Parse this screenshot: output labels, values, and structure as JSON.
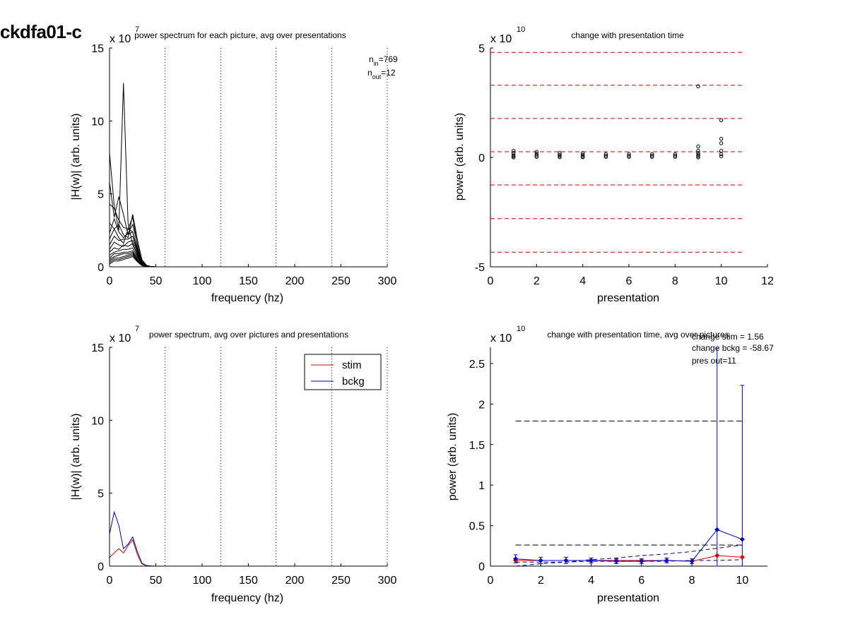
{
  "figure_title": "ckdfa01-c",
  "chart_data": [
    {
      "id": "tl",
      "type": "line",
      "title": "power spectrum for each picture, avg over presentations",
      "xlabel": "frequency (hz)",
      "ylabel": "|H(w)| (arb. units)",
      "multiplier_base": "x 10",
      "multiplier_exp": "7",
      "xlim": [
        0,
        300
      ],
      "ylim": [
        0,
        15
      ],
      "xticks": [
        0,
        50,
        100,
        150,
        200,
        250,
        300
      ],
      "yticks": [
        0,
        5,
        10,
        15
      ],
      "vlines": [
        60,
        120,
        180,
        240,
        300
      ],
      "annotations": [
        {
          "base": "n",
          "sub": "in",
          "value": "=769"
        },
        {
          "base": "n",
          "sub": "out",
          "value": "=12"
        }
      ],
      "x": [
        0,
        5,
        10,
        15,
        20,
        25,
        30,
        35,
        40,
        45,
        50,
        55,
        60,
        300
      ],
      "series": [
        {
          "values": [
            7.8,
            4.2,
            2.5,
            12.6,
            3.0,
            1.5,
            0.9,
            0.2,
            0.05,
            0.02,
            0,
            0,
            0,
            0
          ]
        },
        {
          "values": [
            5.8,
            3.4,
            4.8,
            3.6,
            2.2,
            2.4,
            1.2,
            0.3,
            0.05,
            0.01,
            0,
            0,
            0,
            0
          ]
        },
        {
          "values": [
            4.3,
            4.0,
            3.2,
            2.7,
            2.6,
            3.4,
            1.5,
            0.4,
            0.08,
            0.01,
            0,
            0,
            0,
            0
          ]
        },
        {
          "values": [
            3.0,
            2.6,
            2.9,
            2.2,
            2.0,
            3.6,
            1.9,
            0.5,
            0.1,
            0.02,
            0,
            0,
            0,
            0
          ]
        },
        {
          "values": [
            2.3,
            3.3,
            2.4,
            2.0,
            2.3,
            2.9,
            1.6,
            0.3,
            0.06,
            0.01,
            0,
            0,
            0,
            0
          ]
        },
        {
          "values": [
            1.9,
            2.6,
            2.0,
            1.6,
            2.6,
            2.4,
            1.3,
            0.35,
            0.05,
            0.01,
            0,
            0,
            0,
            0
          ]
        },
        {
          "values": [
            1.5,
            2.1,
            1.8,
            1.9,
            1.9,
            2.1,
            1.1,
            0.25,
            0.04,
            0.01,
            0,
            0,
            0,
            0
          ]
        },
        {
          "values": [
            1.2,
            1.7,
            1.5,
            1.4,
            1.7,
            1.8,
            1.0,
            0.3,
            0.05,
            0.01,
            0,
            0,
            0,
            0
          ]
        },
        {
          "values": [
            1.0,
            1.3,
            1.2,
            1.5,
            1.4,
            1.6,
            0.8,
            0.2,
            0.03,
            0.01,
            0,
            0,
            0,
            0
          ]
        },
        {
          "values": [
            0.8,
            1.0,
            1.1,
            1.2,
            1.2,
            1.3,
            0.7,
            0.2,
            0.03,
            0.01,
            0,
            0,
            0,
            0
          ]
        },
        {
          "values": [
            0.6,
            0.9,
            0.9,
            1.0,
            1.0,
            1.1,
            0.6,
            0.15,
            0.02,
            0,
            0,
            0,
            0,
            0
          ]
        },
        {
          "values": [
            0.5,
            0.7,
            0.8,
            0.9,
            0.9,
            1.0,
            0.5,
            0.12,
            0.02,
            0,
            0,
            0,
            0,
            0
          ]
        },
        {
          "values": [
            0.4,
            0.6,
            0.6,
            0.7,
            0.8,
            0.9,
            0.45,
            0.1,
            0.02,
            0,
            0,
            0,
            0,
            0
          ]
        },
        {
          "values": [
            0.3,
            0.5,
            0.5,
            0.6,
            0.7,
            0.8,
            0.4,
            0.1,
            0.01,
            0,
            0,
            0,
            0,
            0
          ]
        },
        {
          "values": [
            0.2,
            0.4,
            0.4,
            0.5,
            0.6,
            0.7,
            0.35,
            0.08,
            0.01,
            0,
            0,
            0,
            0,
            0
          ]
        }
      ]
    },
    {
      "id": "tr",
      "type": "scatter",
      "title": "change with presentation time",
      "xlabel": "presentation",
      "ylabel": "power (arb. units)",
      "multiplier_base": "x 10",
      "multiplier_exp": "10",
      "xlim": [
        0,
        12
      ],
      "ylim": [
        -5,
        5
      ],
      "xticks": [
        0,
        2,
        4,
        6,
        8,
        10,
        12
      ],
      "yticks": [
        -5,
        0,
        5
      ],
      "hlines": [
        4.8,
        3.3,
        1.78,
        0.26,
        -1.26,
        -2.8,
        -4.33
      ],
      "hline_range": [
        0,
        11
      ],
      "hline_color": "#cc0000",
      "points": [
        [
          1,
          0.3
        ],
        [
          1,
          0.2
        ],
        [
          1,
          0.1
        ],
        [
          1,
          0.05
        ],
        [
          1,
          0.0
        ],
        [
          2,
          0.25
        ],
        [
          2,
          0.15
        ],
        [
          2,
          0.08
        ],
        [
          2,
          0.02
        ],
        [
          3,
          0.2
        ],
        [
          3,
          0.12
        ],
        [
          3,
          0.06
        ],
        [
          3,
          0.01
        ],
        [
          4,
          0.2
        ],
        [
          4,
          0.12
        ],
        [
          4,
          0.05
        ],
        [
          4,
          0.01
        ],
        [
          5,
          0.15
        ],
        [
          5,
          0.08
        ],
        [
          5,
          0.02
        ],
        [
          6,
          0.15
        ],
        [
          6,
          0.08
        ],
        [
          6,
          0.02
        ],
        [
          7,
          0.15
        ],
        [
          7,
          0.08
        ],
        [
          7,
          0.02
        ],
        [
          8,
          0.15
        ],
        [
          8,
          0.08
        ],
        [
          8,
          0.02
        ],
        [
          9,
          3.25
        ],
        [
          9,
          0.5
        ],
        [
          9,
          0.3
        ],
        [
          9,
          0.2
        ],
        [
          9,
          0.12
        ],
        [
          9,
          0.05
        ],
        [
          9,
          0.0
        ],
        [
          10,
          1.7
        ],
        [
          10,
          0.85
        ],
        [
          10,
          0.65
        ],
        [
          10,
          0.3
        ],
        [
          10,
          0.15
        ],
        [
          10,
          0.05
        ]
      ]
    },
    {
      "id": "bl",
      "type": "line",
      "title": "power spectrum, avg over pictures and presentations",
      "xlabel": "frequency (hz)",
      "ylabel": "|H(w)| (arb. units)",
      "multiplier_base": "x 10",
      "multiplier_exp": "7",
      "xlim": [
        0,
        300
      ],
      "ylim": [
        0,
        15
      ],
      "xticks": [
        0,
        50,
        100,
        150,
        200,
        250,
        300
      ],
      "yticks": [
        0,
        5,
        10,
        15
      ],
      "vlines": [
        60,
        120,
        180,
        240,
        300
      ],
      "legend": "top-right",
      "x": [
        0,
        5,
        10,
        15,
        20,
        25,
        30,
        35,
        40,
        45,
        50,
        300
      ],
      "series": [
        {
          "name": "stim",
          "color": "#dd0000",
          "values": [
            0.6,
            0.9,
            1.2,
            0.9,
            1.4,
            1.8,
            0.8,
            0.15,
            0.03,
            0.01,
            0,
            0
          ]
        },
        {
          "name": "bckg",
          "color": "#0000cc",
          "values": [
            2.2,
            3.7,
            2.8,
            1.2,
            1.5,
            2.0,
            1.0,
            0.2,
            0.04,
            0.01,
            0,
            0
          ]
        }
      ]
    },
    {
      "id": "br",
      "type": "line",
      "title": "change with presentation time, avg over pictures",
      "xlabel": "presentation",
      "ylabel": "power (arb. units)",
      "multiplier_base": "x 10",
      "multiplier_exp": "10",
      "xlim": [
        0,
        11
      ],
      "ylim": [
        0,
        2.7
      ],
      "xticks": [
        0,
        2,
        4,
        6,
        8,
        10
      ],
      "yticks": [
        0,
        0.5,
        1,
        1.5,
        2,
        2.5
      ],
      "ytick_labels": [
        "0",
        "0.5",
        "1",
        "1.5",
        "2",
        "2.5"
      ],
      "annotations": [
        "change stim = 1.56",
        "change bckg = -58.67",
        "pres out=11"
      ],
      "hlines": [
        1.79,
        0.26
      ],
      "hline_range": [
        1,
        10
      ],
      "x": [
        1,
        2,
        3,
        4,
        5,
        6,
        7,
        8,
        9,
        10
      ],
      "series": [
        {
          "name": "stim",
          "color": "#dd0000",
          "values": [
            0.07,
            0.07,
            0.07,
            0.07,
            0.07,
            0.07,
            0.07,
            0.06,
            0.13,
            0.11
          ]
        },
        {
          "name": "bckg",
          "color": "#0000dd",
          "values": [
            0.09,
            0.07,
            0.07,
            0.07,
            0.06,
            0.06,
            0.07,
            0.06,
            0.45,
            0.33
          ],
          "err": [
            0.05,
            0.04,
            0.04,
            0.03,
            0.03,
            0.03,
            0.03,
            0.03,
            2.3,
            1.9
          ]
        }
      ],
      "trend": {
        "color": "#000088",
        "values": [
          0.0,
          0.03,
          0.05,
          0.08,
          0.1,
          0.13,
          0.15,
          0.18,
          0.22,
          0.26
        ]
      },
      "trend2": {
        "color": "#000088",
        "values": [
          0.05,
          0.05,
          0.05,
          0.06,
          0.06,
          0.06,
          0.06,
          0.07,
          0.07,
          0.08
        ]
      }
    }
  ]
}
